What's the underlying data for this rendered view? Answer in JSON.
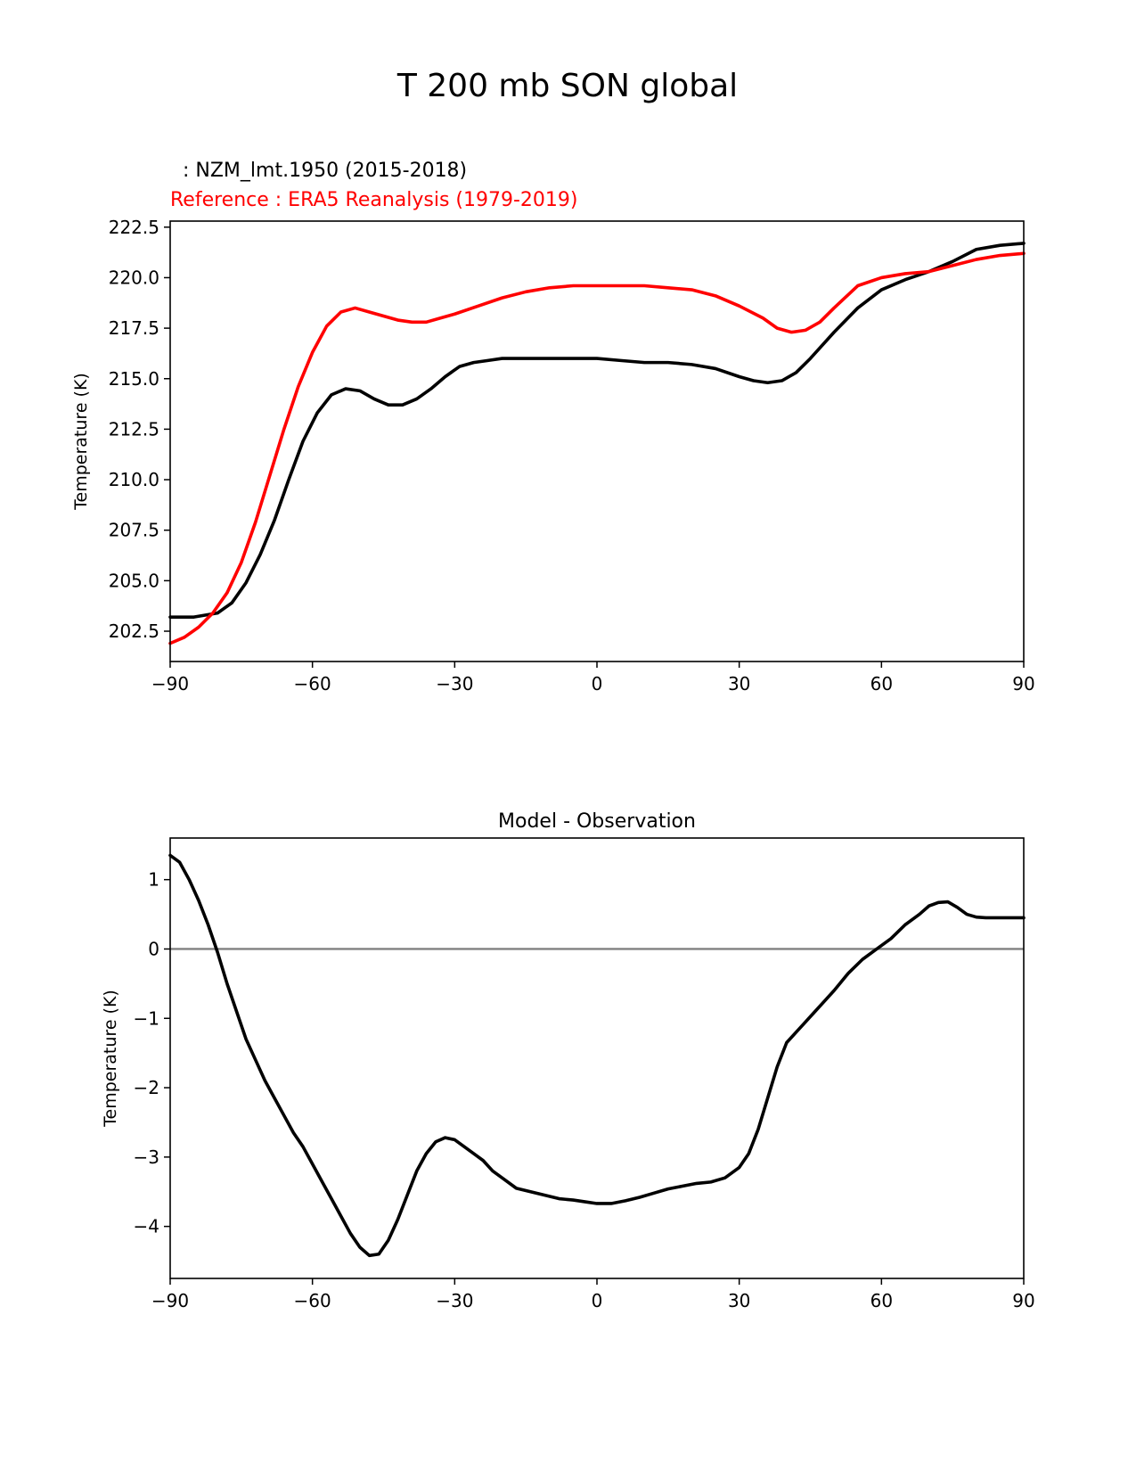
{
  "figure_title": "T 200 mb SON global",
  "chart_data": [
    {
      "type": "line",
      "test_label": " : NZM_lmt.1950 (2015-2018)",
      "reference_label": "Reference : ERA5 Reanalysis (1979-2019)",
      "xlabel": "",
      "ylabel": "Temperature (K)",
      "xlim": [
        -90,
        90
      ],
      "ylim": [
        201.0,
        222.8
      ],
      "xticks": [
        -90,
        -60,
        -30,
        0,
        30,
        60,
        90
      ],
      "xtick_labels": [
        "−90",
        "−60",
        "−30",
        "0",
        "30",
        "60",
        "90"
      ],
      "yticks": [
        202.5,
        205.0,
        207.5,
        210.0,
        212.5,
        215.0,
        217.5,
        220.0,
        222.5
      ],
      "ytick_labels": [
        "202.5",
        "205.0",
        "207.5",
        "210.0",
        "212.5",
        "215.0",
        "217.5",
        "220.0",
        "222.5"
      ],
      "series": [
        {
          "name": "NZM_lmt.1950 (2015-2018)",
          "color": "#000000",
          "x": [
            -90,
            -85,
            -80,
            -77,
            -74,
            -71,
            -68,
            -65,
            -62,
            -59,
            -56,
            -53,
            -50,
            -47,
            -44,
            -41,
            -38,
            -35,
            -32,
            -29,
            -26,
            -23,
            -20,
            -15,
            -10,
            -5,
            0,
            5,
            10,
            15,
            20,
            25,
            30,
            33,
            36,
            39,
            42,
            45,
            50,
            55,
            60,
            65,
            70,
            75,
            80,
            85,
            90
          ],
          "values": [
            203.2,
            203.2,
            203.4,
            203.9,
            204.9,
            206.3,
            208.0,
            210.0,
            211.9,
            213.3,
            214.2,
            214.5,
            214.4,
            214.0,
            213.7,
            213.7,
            214.0,
            214.5,
            215.1,
            215.6,
            215.8,
            215.9,
            216.0,
            216.0,
            216.0,
            216.0,
            216.0,
            215.9,
            215.8,
            215.8,
            215.7,
            215.5,
            215.1,
            214.9,
            214.8,
            214.9,
            215.3,
            216.0,
            217.3,
            218.5,
            219.4,
            219.9,
            220.3,
            220.8,
            221.4,
            221.6,
            221.7
          ]
        },
        {
          "name": "ERA5 Reanalysis (1979-2019)",
          "color": "#ff0000",
          "x": [
            -90,
            -87,
            -84,
            -81,
            -78,
            -75,
            -72,
            -69,
            -66,
            -63,
            -60,
            -57,
            -54,
            -51,
            -48,
            -45,
            -42,
            -39,
            -36,
            -33,
            -30,
            -25,
            -20,
            -15,
            -10,
            -5,
            0,
            5,
            10,
            15,
            20,
            25,
            30,
            35,
            38,
            41,
            44,
            47,
            50,
            55,
            60,
            65,
            70,
            75,
            80,
            85,
            90
          ],
          "values": [
            201.9,
            202.2,
            202.7,
            203.4,
            204.4,
            205.9,
            207.9,
            210.2,
            212.5,
            214.6,
            216.3,
            217.6,
            218.3,
            218.5,
            218.3,
            218.1,
            217.9,
            217.8,
            217.8,
            218.0,
            218.2,
            218.6,
            219.0,
            219.3,
            219.5,
            219.6,
            219.6,
            219.6,
            219.6,
            219.5,
            219.4,
            219.1,
            218.6,
            218.0,
            217.5,
            217.3,
            217.4,
            217.8,
            218.5,
            219.6,
            220.0,
            220.2,
            220.3,
            220.6,
            220.9,
            221.1,
            221.2
          ]
        }
      ]
    },
    {
      "type": "line",
      "title": "Model - Observation",
      "xlabel": "",
      "ylabel": "Temperature (K)",
      "xlim": [
        -90,
        90
      ],
      "ylim": [
        -4.75,
        1.6
      ],
      "xticks": [
        -90,
        -60,
        -30,
        0,
        30,
        60,
        90
      ],
      "xtick_labels": [
        "−90",
        "−60",
        "−30",
        "0",
        "30",
        "60",
        "90"
      ],
      "yticks": [
        -4,
        -3,
        -2,
        -1,
        0,
        1
      ],
      "ytick_labels": [
        "−4",
        "−3",
        "−2",
        "−1",
        "0",
        "1"
      ],
      "zero_line": {
        "value": 0,
        "color": "#808080"
      },
      "series": [
        {
          "name": "Model - Observation",
          "color": "#000000",
          "x": [
            -90,
            -88,
            -86,
            -84,
            -82,
            -80,
            -78,
            -76,
            -74,
            -72,
            -70,
            -68,
            -66,
            -64,
            -62,
            -60,
            -58,
            -56,
            -54,
            -52,
            -50,
            -48,
            -46,
            -44,
            -42,
            -40,
            -38,
            -36,
            -34,
            -32,
            -30,
            -28,
            -26,
            -24,
            -22,
            -20,
            -17,
            -14,
            -11,
            -8,
            -5,
            -2,
            0,
            3,
            6,
            9,
            12,
            15,
            18,
            21,
            24,
            27,
            30,
            32,
            34,
            36,
            38,
            40,
            42,
            44,
            46,
            48,
            50,
            53,
            56,
            59,
            62,
            65,
            68,
            70,
            72,
            74,
            76,
            78,
            80,
            82,
            84,
            86,
            88,
            90
          ],
          "values": [
            1.35,
            1.25,
            1.0,
            0.7,
            0.35,
            -0.05,
            -0.5,
            -0.9,
            -1.3,
            -1.6,
            -1.9,
            -2.15,
            -2.4,
            -2.65,
            -2.85,
            -3.1,
            -3.35,
            -3.6,
            -3.85,
            -4.1,
            -4.3,
            -4.42,
            -4.4,
            -4.2,
            -3.9,
            -3.55,
            -3.2,
            -2.95,
            -2.78,
            -2.72,
            -2.75,
            -2.85,
            -2.95,
            -3.05,
            -3.2,
            -3.3,
            -3.45,
            -3.5,
            -3.55,
            -3.6,
            -3.62,
            -3.65,
            -3.67,
            -3.67,
            -3.63,
            -3.58,
            -3.52,
            -3.46,
            -3.42,
            -3.38,
            -3.36,
            -3.3,
            -3.15,
            -2.95,
            -2.6,
            -2.15,
            -1.7,
            -1.35,
            -1.2,
            -1.05,
            -0.9,
            -0.75,
            -0.6,
            -0.35,
            -0.15,
            0.0,
            0.15,
            0.35,
            0.5,
            0.62,
            0.67,
            0.68,
            0.6,
            0.5,
            0.46,
            0.45,
            0.45,
            0.45,
            0.45,
            0.45
          ]
        }
      ]
    }
  ]
}
